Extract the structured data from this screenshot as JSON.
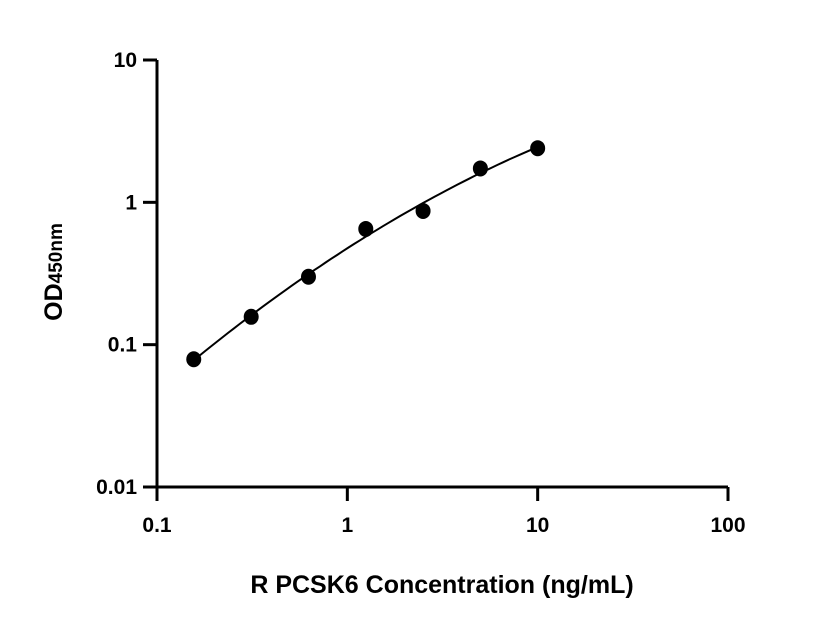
{
  "chart_data": {
    "type": "scatter",
    "xlabel": "R PCSK6 Concentration (ng/mL)",
    "ylabel": "OD",
    "ylabel_subscript": "450nm",
    "x_scale": "log",
    "y_scale": "log",
    "xlim": [
      0.1,
      100
    ],
    "ylim": [
      0.01,
      10
    ],
    "x_ticks": [
      "0.1",
      "1",
      "10",
      "100"
    ],
    "y_ticks": [
      "0.01",
      "0.1",
      "1",
      "10"
    ],
    "grid": false,
    "fit_curve": true,
    "series": [
      {
        "x": [
          0.156,
          0.3125,
          0.625,
          1.25,
          2.5,
          5,
          10
        ],
        "y": [
          0.079,
          0.157,
          0.3,
          0.65,
          0.87,
          1.73,
          2.4
        ]
      }
    ],
    "colors": {
      "points": "#000000",
      "curve": "#000000",
      "axes": "#000000"
    }
  }
}
